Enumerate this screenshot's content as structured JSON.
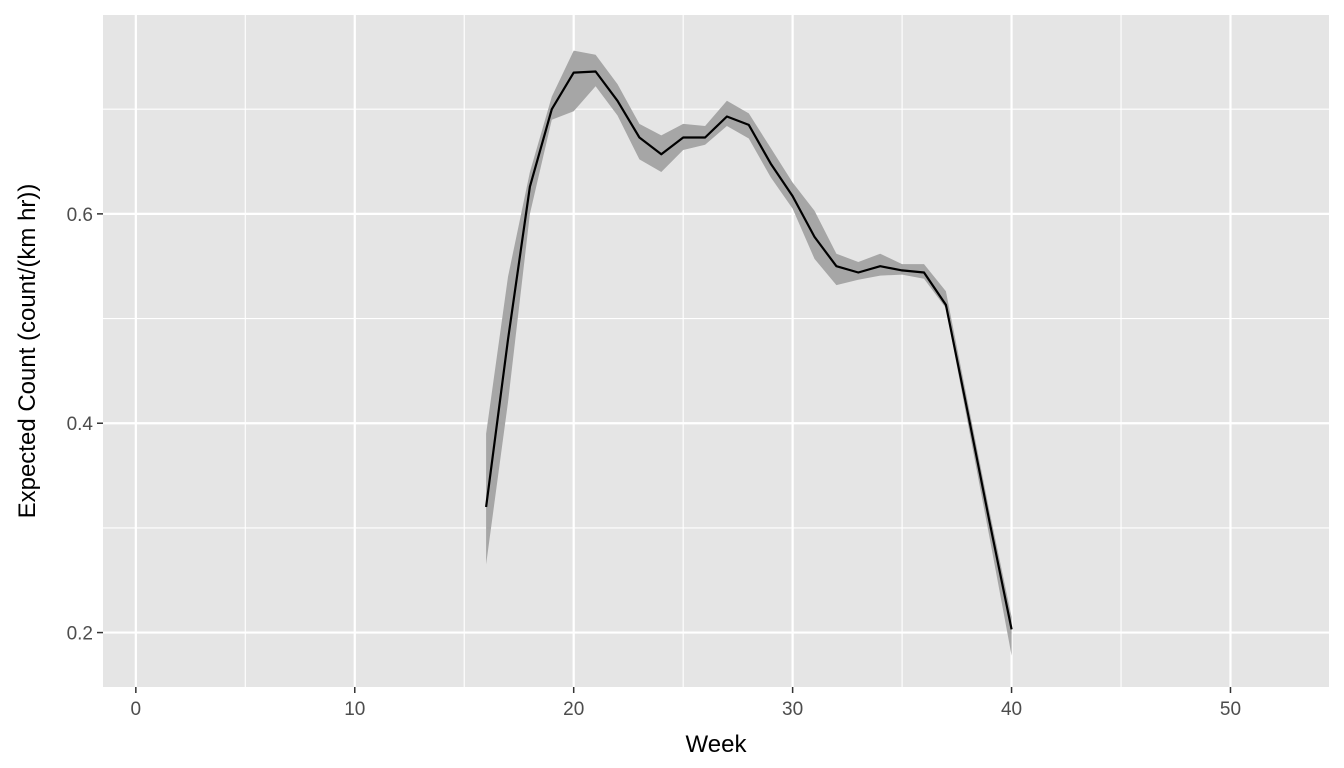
{
  "chart_data": {
    "type": "line",
    "title": "",
    "xlabel": "Week",
    "ylabel": "Expected Count (count/(km hr))",
    "xlim": [
      -1.5,
      54.5
    ],
    "ylim": [
      0.148,
      0.79
    ],
    "x_ticks": [
      0,
      10,
      20,
      30,
      40,
      50
    ],
    "y_ticks": [
      0.2,
      0.4,
      0.6
    ],
    "x_tick_labels": [
      "0",
      "10",
      "20",
      "30",
      "40",
      "50"
    ],
    "y_tick_labels": [
      "0.2",
      "0.4",
      "0.6"
    ],
    "grid": true,
    "legend": "none",
    "colors": {
      "panel": "#e5e5e5",
      "grid": "#ffffff",
      "line": "#000000",
      "ribbon": "#a6a6a6",
      "tick_text": "#4d4d4d"
    },
    "series": [
      {
        "x": [
          16,
          17,
          18,
          19,
          20,
          21,
          22,
          23,
          24,
          25,
          26,
          27,
          28,
          29,
          30,
          31,
          32,
          33,
          34,
          35,
          36,
          37,
          38,
          39,
          40
        ],
        "y": [
          0.32,
          0.48,
          0.626,
          0.7,
          0.735,
          0.736,
          0.708,
          0.673,
          0.657,
          0.673,
          0.673,
          0.693,
          0.685,
          0.648,
          0.617,
          0.578,
          0.55,
          0.544,
          0.55,
          0.546,
          0.544,
          0.513,
          0.41,
          0.305,
          0.203
        ],
        "lower": [
          0.265,
          0.42,
          0.6,
          0.69,
          0.698,
          0.722,
          0.694,
          0.652,
          0.64,
          0.661,
          0.666,
          0.684,
          0.672,
          0.635,
          0.605,
          0.557,
          0.532,
          0.537,
          0.541,
          0.542,
          0.538,
          0.51,
          0.4,
          0.29,
          0.178
        ],
        "upper": [
          0.39,
          0.54,
          0.64,
          0.712,
          0.756,
          0.752,
          0.724,
          0.686,
          0.675,
          0.686,
          0.684,
          0.708,
          0.696,
          0.663,
          0.63,
          0.603,
          0.562,
          0.554,
          0.562,
          0.552,
          0.552,
          0.526,
          0.42,
          0.315,
          0.215
        ]
      }
    ]
  }
}
